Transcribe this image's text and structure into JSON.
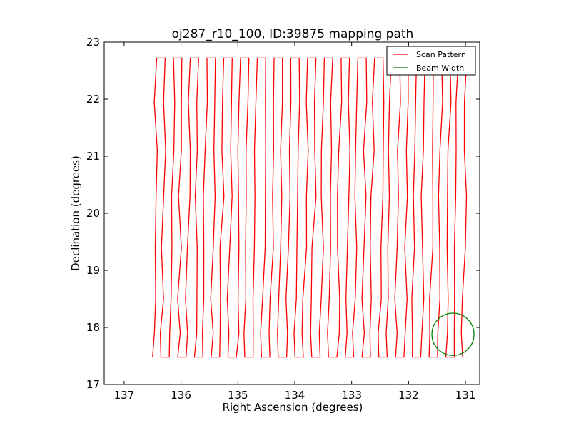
{
  "chart_data": {
    "type": "line",
    "title": "oj287_r10_100, ID:39875 mapping path",
    "xlabel": "Right Ascension (degrees)",
    "ylabel": "Declination (degrees)",
    "xlim": [
      137.35,
      130.75
    ],
    "ylim": [
      17,
      23
    ],
    "x_inverted": true,
    "xticks": [
      137,
      136,
      135,
      134,
      133,
      132,
      131
    ],
    "yticks": [
      17,
      18,
      19,
      20,
      21,
      22,
      23
    ],
    "grid": false,
    "legend_position": "top-right",
    "scan": {
      "ra_start": 136.5,
      "ra_end": 131.05,
      "leg_count": 38,
      "dec_bottom": 17.48,
      "dec_top": 22.72,
      "jitter_amplitude": 0.1
    },
    "beam": {
      "ra_center": 131.22,
      "dec_center": 17.88,
      "radius_deg": 0.37
    },
    "series": [
      {
        "name": "Scan Pattern",
        "color": "#ff0000"
      },
      {
        "name": "Beam Width",
        "color": "#008000"
      }
    ]
  }
}
